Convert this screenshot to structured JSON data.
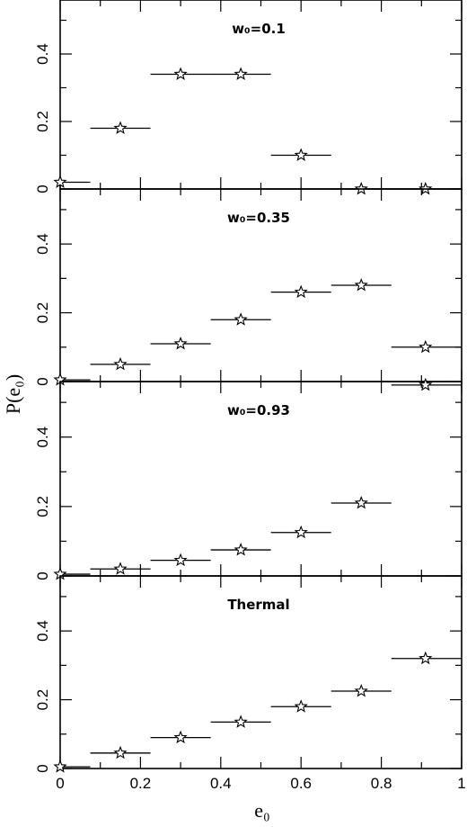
{
  "chart_data": {
    "type": "scatter",
    "xlabel": "e₀",
    "ylabel": "P(e₀)",
    "xlim": [
      0,
      1
    ],
    "ylim": [
      0,
      0.56
    ],
    "x_tick_labels": [
      "0",
      "0.2",
      "0.4",
      "0.6",
      "0.8",
      "1"
    ],
    "y_tick_labels": [
      "0",
      "0.2",
      "0.4"
    ],
    "bin_edges": [
      0,
      0.075,
      0.225,
      0.375,
      0.525,
      0.675,
      0.825,
      1.0
    ],
    "x": [
      0.0,
      0.15,
      0.3,
      0.45,
      0.6,
      0.75,
      0.91
    ],
    "panels": [
      {
        "label": "w₀=0.1",
        "values": [
          0.02,
          0.18,
          0.34,
          0.34,
          0.1,
          0.0,
          0.0
        ]
      },
      {
        "label": "w₀=0.35",
        "values": [
          0.005,
          0.05,
          0.11,
          0.18,
          0.26,
          0.28,
          0.1
        ]
      },
      {
        "label": "w₀=0.93",
        "values": [
          0.005,
          0.02,
          0.045,
          0.075,
          0.125,
          0.21,
          0.55
        ]
      },
      {
        "label": "Thermal",
        "values": [
          0.005,
          0.045,
          0.09,
          0.135,
          0.18,
          0.225,
          0.32
        ]
      }
    ]
  }
}
